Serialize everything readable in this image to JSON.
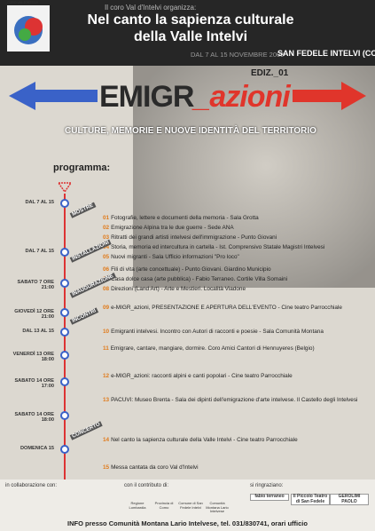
{
  "header": {
    "logo_text": "CORO VAL D'INTELVI",
    "organizer": "Il coro Val d'Intelvi organizza:",
    "title_line1": "Nel canto la sapienza culturale",
    "title_line2": "della Valle Intelvi",
    "dates": "DAL 7 AL 15 NOVEMBRE 2009",
    "place": "SAN FEDELE INTELVI (CO)",
    "edition": "EDIZ._01"
  },
  "event": {
    "title_prefix": "EMIGR",
    "title_suffix": "_azioni",
    "subtitle": "CULTURE, MEMORIE E NUOVE IDENTITÀ DEL TERRITORIO"
  },
  "program": {
    "heading": "programma:",
    "dates": [
      "DAL 7 AL 15",
      "DAL 7 AL 15",
      "SABATO 7 ORE 21:00",
      "GIOVEDÌ 12 ORE 21:00",
      "DAL 13 AL 15",
      "VENERDÌ 13 ORE 18:00",
      "SABATO 14 ORE 17:00",
      "SABATO 14 ORE 18:00",
      "DOMENICA 15"
    ],
    "sections": [
      "MOSTRE",
      "INSTALLAZIONI",
      "INAUGURAZIONE",
      "INCONTRI",
      "CONCERTO"
    ],
    "items": [
      {
        "num": "01",
        "text": "Fotografie, lettere e documenti della memoria - Sala Grotta"
      },
      {
        "num": "02",
        "text": "Emigrazione Alpina tra le due guerre - Sede ANA"
      },
      {
        "num": "03",
        "text": "Ritratti dei grandi artisti intelvesi dell'immigrazione - Punto Giovani"
      },
      {
        "num": "04",
        "text": "Storia, memoria ed intercultura in cartella - Ist. Comprensivo Statale Magistri Intelvesi"
      },
      {
        "num": "05",
        "text": "Nuovi migranti - Sala Ufficio informazioni \"Pro loco\""
      },
      {
        "num": "06",
        "text": "Fili di vita (arte concettuale) - Punto Giovani. Giardino Municipio"
      },
      {
        "num": "07",
        "text": "Casa dolce casa (arte pubblica) - Fabio Terraneo. Cortile Villa Somaini"
      },
      {
        "num": "08",
        "text": "Direzioni (Land Art) - Arte e Mestieri. Località Viadone"
      },
      {
        "num": "09",
        "text": "e-MIGR_azioni, PRESENTAZIONE E APERTURA DELL'EVENTO - Cine teatro Parrocchiale"
      },
      {
        "num": "10",
        "text": "Emigranti intelvesi. Incontro con Autori di racconti e poesie - Sala Comunità Montana"
      },
      {
        "num": "11",
        "text": "Emigrare, cantare, mangiare, dormire. Coro Amici Cantori di Hennuyeres (Belgio)"
      },
      {
        "num": "12",
        "text": "e-MIGR_azioni: racconti alpini e canti popolari - Cine teatro Parrocchiale"
      },
      {
        "num": "13",
        "text": "PACUVI: Museo Brenta - Sala dei dipinti dell'emigrazione d'arte intelvese. Il Castello degli Intelvesi"
      },
      {
        "num": "14",
        "text": "Nel canto la sapienza culturale della Valle Intelvi - Cine teatro Parrocchiale"
      },
      {
        "num": "15",
        "text": "Messa cantata da coro Val d'Intelvi"
      }
    ]
  },
  "footer": {
    "collaboration": "in collaborazione con:",
    "contribution": "con il contributo di:",
    "thanks": "si ringraziano:",
    "sponsors": [
      "Regione Lombardia",
      "Provincia di Como",
      "Comune di San Fedele Intelvi",
      "Comunità Montana Lario Intelvese"
    ],
    "thanked": [
      "fabio terraneo",
      "Il Piccolo Teatro di San Fedele",
      "GEROLIMI PAOLO"
    ],
    "info": "INFO presso Comunità Montana Lario Intelvese, tel. 031/830741, orari ufficio"
  }
}
